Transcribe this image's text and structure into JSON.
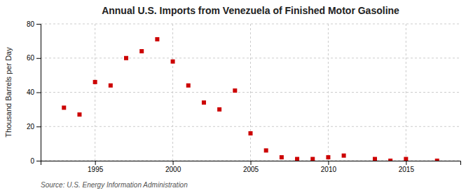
{
  "chart_data": {
    "type": "scatter",
    "title": "Annual U.S. Imports from Venezuela of Finished Motor Gasoline",
    "ylabel": "Thousand Barrels per Day",
    "source": "Source: U.S. Energy Information Administration",
    "x": [
      1993,
      1994,
      1995,
      1996,
      1997,
      1998,
      1999,
      2000,
      2001,
      2002,
      2003,
      2004,
      2005,
      2006,
      2007,
      2008,
      2009,
      2010,
      2011,
      2013,
      2014,
      2015,
      2017
    ],
    "values": [
      31,
      27,
      46,
      44,
      60,
      64,
      71,
      58,
      44,
      34,
      30,
      41,
      16,
      6,
      2,
      1,
      1,
      2,
      3,
      1,
      0,
      1,
      0
    ],
    "color": "#cc0000",
    "marker": "square",
    "xlim": [
      1991.5,
      2018.5
    ],
    "ylim": [
      0,
      80
    ],
    "xticks": [
      1995,
      2000,
      2005,
      2010,
      2015
    ],
    "yticks": [
      0,
      20,
      40,
      60,
      80
    ],
    "grid": true
  }
}
